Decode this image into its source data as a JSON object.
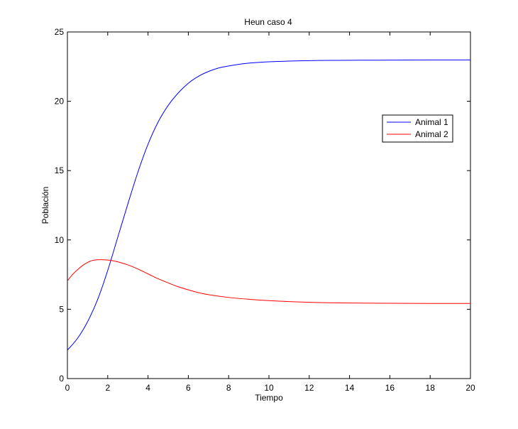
{
  "chart_data": {
    "type": "line",
    "title": "Heun caso 4",
    "xlabel": "Tiempo",
    "ylabel": "Población",
    "xlim": [
      0,
      20
    ],
    "ylim": [
      0,
      25
    ],
    "xticks": [
      0,
      2,
      4,
      6,
      8,
      10,
      12,
      14,
      16,
      18,
      20
    ],
    "yticks": [
      0,
      5,
      10,
      15,
      20,
      25
    ],
    "grid": false,
    "legend_position": "upper-right",
    "series": [
      {
        "name": "Animal 1",
        "color": "#0000ff",
        "x": [
          0,
          0.5,
          1,
          1.5,
          2,
          2.5,
          3,
          3.5,
          4,
          4.5,
          5,
          5.5,
          6,
          6.5,
          7,
          7.5,
          8,
          9,
          10,
          11,
          12,
          13,
          14,
          16,
          18,
          20
        ],
        "y": [
          2.05,
          2.9,
          4.1,
          5.7,
          7.8,
          10.2,
          12.6,
          14.9,
          16.9,
          18.5,
          19.7,
          20.6,
          21.3,
          21.8,
          22.15,
          22.4,
          22.55,
          22.75,
          22.85,
          22.9,
          22.93,
          22.95,
          22.96,
          22.97,
          22.98,
          22.98
        ]
      },
      {
        "name": "Animal 2",
        "color": "#ff0000",
        "x": [
          0,
          0.25,
          0.5,
          0.75,
          1,
          1.25,
          1.5,
          1.75,
          2,
          2.25,
          2.5,
          3,
          3.5,
          4,
          4.5,
          5,
          5.5,
          6,
          6.5,
          7,
          8,
          9,
          10,
          11,
          12,
          13,
          14,
          16,
          18,
          20
        ],
        "y": [
          7.05,
          7.5,
          7.85,
          8.15,
          8.38,
          8.52,
          8.57,
          8.57,
          8.55,
          8.5,
          8.42,
          8.2,
          7.9,
          7.55,
          7.2,
          6.9,
          6.62,
          6.4,
          6.2,
          6.05,
          5.85,
          5.72,
          5.62,
          5.55,
          5.5,
          5.47,
          5.45,
          5.43,
          5.42,
          5.42
        ]
      }
    ]
  }
}
